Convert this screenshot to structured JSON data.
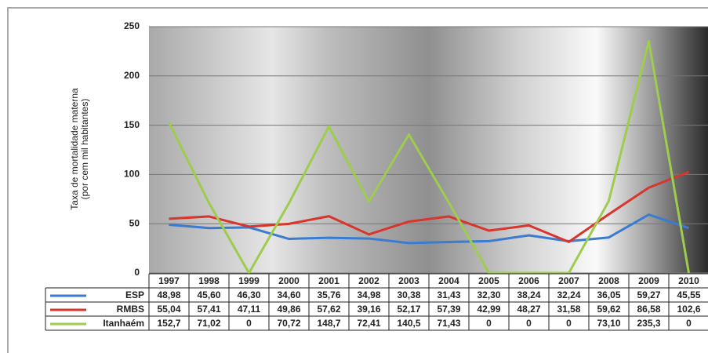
{
  "chart_data": {
    "type": "line",
    "ylabel": [
      "Taxa de mortalidade materna",
      "(por cem mil habitantes)"
    ],
    "categories": [
      "1997",
      "1998",
      "1999",
      "2000",
      "2001",
      "2002",
      "2003",
      "2004",
      "2005",
      "2006",
      "2007",
      "2008",
      "2009",
      "2010"
    ],
    "series": [
      {
        "name": "ESP",
        "color": "#3b7bd0",
        "values": [
          48.98,
          45.6,
          46.3,
          34.6,
          35.76,
          34.98,
          30.38,
          31.43,
          32.3,
          38.24,
          32.24,
          36.05,
          59.27,
          45.55
        ],
        "value_labels": [
          "48,98",
          "45,60",
          "46,30",
          "34,60",
          "35,76",
          "34,98",
          "30,38",
          "31,43",
          "32,30",
          "38,24",
          "32,24",
          "36,05",
          "59,27",
          "45,55"
        ]
      },
      {
        "name": "RMBS",
        "color": "#d8352c",
        "values": [
          55.04,
          57.41,
          47.11,
          49.86,
          57.62,
          39.16,
          52.17,
          57.39,
          42.99,
          48.27,
          31.58,
          59.62,
          86.58,
          102.6
        ],
        "value_labels": [
          "55,04",
          "57,41",
          "47,11",
          "49,86",
          "57,62",
          "39,16",
          "52,17",
          "57,39",
          "42,99",
          "48,27",
          "31,58",
          "59,62",
          "86,58",
          "102,6"
        ]
      },
      {
        "name": "Itanhaém",
        "color": "#9dcc4e",
        "values": [
          152.7,
          71.02,
          0,
          70.72,
          148.7,
          72.41,
          140.5,
          71.43,
          0,
          0,
          0,
          73.1,
          235.3,
          0
        ],
        "value_labels": [
          "152,7",
          "71,02",
          "0",
          "70,72",
          "148,7",
          "72,41",
          "140,5",
          "71,43",
          "0",
          "0",
          "0",
          "73,10",
          "235,3",
          "0"
        ]
      }
    ],
    "ylim": [
      0,
      250
    ],
    "yticks": [
      0,
      50,
      100,
      150,
      200,
      250
    ],
    "grid": true
  }
}
